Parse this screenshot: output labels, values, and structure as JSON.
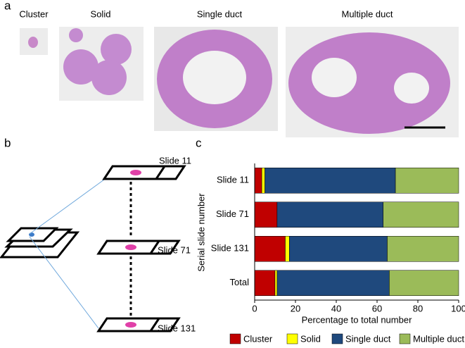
{
  "figure": {
    "panels": [
      "a",
      "b",
      "c"
    ],
    "image_labels": [
      "Cluster",
      "Solid",
      "Single duct",
      "Multiple duct"
    ],
    "slide_labels": [
      "Slide 11",
      "Slide 71",
      "Slide 131"
    ]
  },
  "chart_data": {
    "type": "bar",
    "orientation": "horizontal",
    "stacked": true,
    "xlabel": "Percentage to total number",
    "ylabel": "Serial slide number",
    "categories": [
      "Slide 11",
      "Slide 71",
      "Slide 131",
      "Total"
    ],
    "series": [
      {
        "name": "Cluster",
        "color": "#c00000",
        "values": [
          3.5,
          11,
          15,
          10
        ]
      },
      {
        "name": "Solid",
        "color": "#ffff00",
        "values": [
          1.5,
          0,
          2,
          1
        ]
      },
      {
        "name": "Single duct",
        "color": "#1f497d",
        "values": [
          64,
          52,
          48,
          55
        ]
      },
      {
        "name": "Multiple duct",
        "color": "#9bbb59",
        "values": [
          31,
          37,
          35,
          34
        ]
      }
    ],
    "xlim": [
      0,
      100
    ],
    "xticks": [
      0,
      20,
      40,
      60,
      80,
      100
    ],
    "grid": false,
    "legend": "bottom"
  }
}
